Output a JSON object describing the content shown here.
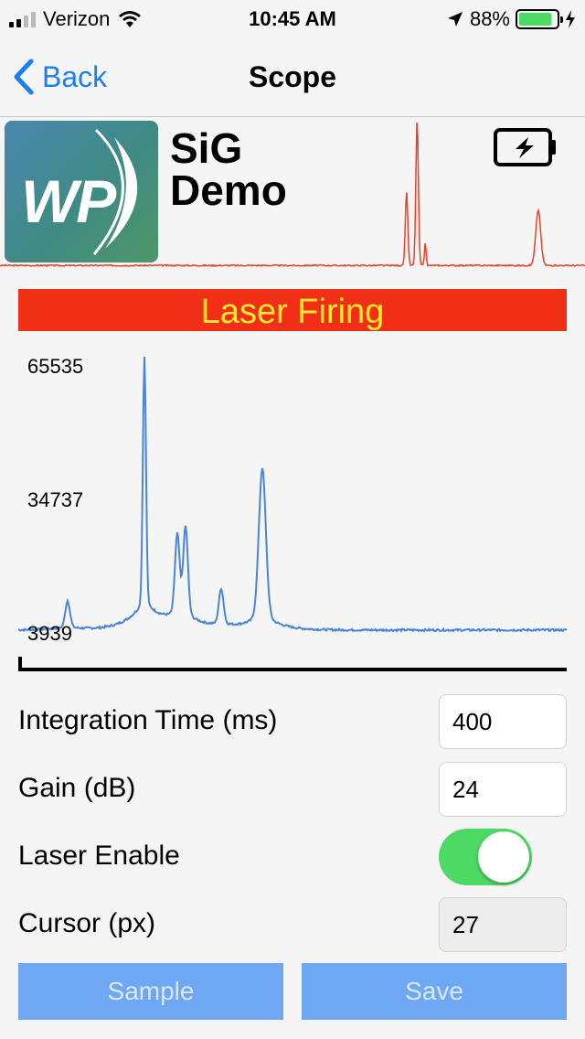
{
  "status_bar": {
    "carrier": "Verizon",
    "time": "10:45 AM",
    "battery": "88%",
    "battery_level": 0.88
  },
  "nav": {
    "back_label": "Back",
    "title": "Scope"
  },
  "header": {
    "logo_text": "WP",
    "brand_line1": "SiG",
    "brand_line2": "Demo",
    "battery_icon": "battery-charging-icon"
  },
  "banner": {
    "text": "Laser Firing",
    "bg": "#f12f16",
    "fg": "#ffe92b"
  },
  "chart_data": {
    "type": "line",
    "y_ticks": [
      "65535",
      "34737",
      "3939"
    ],
    "ylim": [
      3939,
      65535
    ],
    "series_color": "#4a86d8",
    "peaks": [
      {
        "x": 0.09,
        "y": 10500
      },
      {
        "x": 0.23,
        "y": 63500
      },
      {
        "x": 0.29,
        "y": 23000
      },
      {
        "x": 0.305,
        "y": 25000
      },
      {
        "x": 0.37,
        "y": 12500
      },
      {
        "x": 0.445,
        "y": 39500
      }
    ],
    "baseline": 4200
  },
  "top_spectrum": {
    "color": "#e5432a"
  },
  "controls": {
    "integration_label": "Integration Time (ms)",
    "integration_value": "400",
    "gain_label": "Gain (dB)",
    "gain_value": "24",
    "laser_label": "Laser Enable",
    "laser_enabled": true,
    "cursor_label": "Cursor (px)",
    "cursor_value": "27"
  },
  "buttons": {
    "sample": "Sample",
    "save": "Save"
  }
}
